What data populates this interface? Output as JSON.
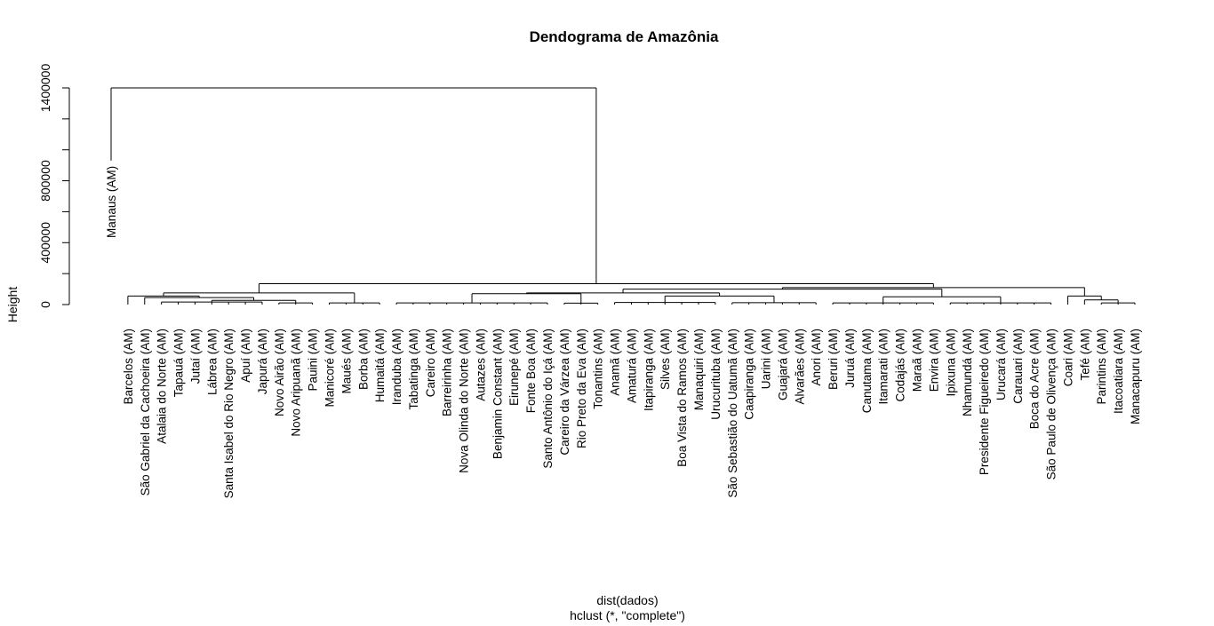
{
  "chart_data": {
    "type": "dendrogram",
    "title": "Dendograma de Amazônia",
    "xlabel": "dist(dados)",
    "sub": "hclust (*, \"complete\")",
    "ylabel": "Height",
    "yticks": [
      0,
      400000,
      800000,
      1400000
    ],
    "ylim": [
      0,
      1400000
    ],
    "leaves": [
      "Manaus (AM)",
      "Barcelos (AM)",
      "São Gabriel da Cachoeira (AM)",
      "Atalaia do Norte (AM)",
      "Tapauá (AM)",
      "Jutaí (AM)",
      "Lábrea (AM)",
      "Santa Isabel do Rio Negro (AM)",
      "Apuí (AM)",
      "Japurá (AM)",
      "Novo Airão (AM)",
      "Novo Aripuanã (AM)",
      "Pauini (AM)",
      "Manicoré (AM)",
      "Maués (AM)",
      "Borba (AM)",
      "Humaitá (AM)",
      "Iranduba (AM)",
      "Tabatinga (AM)",
      "Careiro (AM)",
      "Barreirinha (AM)",
      "Nova Olinda do Norte (AM)",
      "Autazes (AM)",
      "Benjamin Constant (AM)",
      "Eirunepé (AM)",
      "Fonte Boa (AM)",
      "Santo Antônio do Içá (AM)",
      "Careiro da Várzea (AM)",
      "Rio Preto da Eva (AM)",
      "Tonantins (AM)",
      "Anamã (AM)",
      "Amaturá (AM)",
      "Itapiranga (AM)",
      "Silves (AM)",
      "Boa Vista do Ramos (AM)",
      "Manaquiri (AM)",
      "Urucurituba (AM)",
      "São Sebastião do Uatumã (AM)",
      "Caapiranga (AM)",
      "Uarini (AM)",
      "Guajará (AM)",
      "Alvarães (AM)",
      "Anori (AM)",
      "Beruri (AM)",
      "Juruá (AM)",
      "Canutama (AM)",
      "Itamarati (AM)",
      "Codajás (AM)",
      "Maraã (AM)",
      "Envira (AM)",
      "Ipixuna (AM)",
      "Nhamundá (AM)",
      "Presidente Figueiredo (AM)",
      "Urucará (AM)",
      "Carauari (AM)",
      "Boca do Acre (AM)",
      "São Paulo de Olivença (AM)",
      "Coari (AM)",
      "Tefé (AM)",
      "Parintins (AM)",
      "Itacoatiara (AM)",
      "Manacapuru (AM)"
    ]
  }
}
